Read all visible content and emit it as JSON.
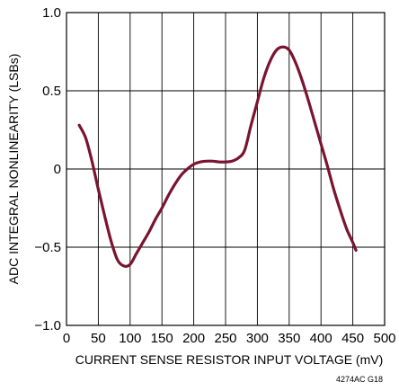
{
  "chart_data": {
    "type": "line",
    "xlabel": "CURRENT SENSE RESISTOR INPUT VOLTAGE (mV)",
    "ylabel": "ADC INTEGRAL NONLINEARITY (LSBs)",
    "xlim": [
      0,
      500
    ],
    "ylim": [
      -1.0,
      1.0
    ],
    "x_ticks": [
      0,
      50,
      100,
      150,
      200,
      250,
      300,
      350,
      400,
      450,
      500
    ],
    "x_tick_labels": [
      "0",
      "50",
      "100",
      "150",
      "200",
      "250",
      "300",
      "350",
      "400",
      "450",
      "500"
    ],
    "y_ticks": [
      -1.0,
      -0.5,
      0,
      0.5,
      1.0
    ],
    "y_tick_labels": [
      "−1.0",
      "−0.5",
      "0",
      "0.5",
      "1.0"
    ],
    "grid": true,
    "series": [
      {
        "color": "#7a1430",
        "points": [
          [
            20,
            0.28
          ],
          [
            30,
            0.2
          ],
          [
            40,
            0.05
          ],
          [
            50,
            -0.13
          ],
          [
            60,
            -0.3
          ],
          [
            70,
            -0.46
          ],
          [
            80,
            -0.58
          ],
          [
            90,
            -0.62
          ],
          [
            100,
            -0.61
          ],
          [
            110,
            -0.54
          ],
          [
            120,
            -0.47
          ],
          [
            130,
            -0.4
          ],
          [
            140,
            -0.32
          ],
          [
            150,
            -0.25
          ],
          [
            160,
            -0.17
          ],
          [
            170,
            -0.1
          ],
          [
            180,
            -0.04
          ],
          [
            190,
            0.0
          ],
          [
            200,
            0.03
          ],
          [
            210,
            0.045
          ],
          [
            220,
            0.05
          ],
          [
            230,
            0.05
          ],
          [
            240,
            0.045
          ],
          [
            250,
            0.045
          ],
          [
            260,
            0.05
          ],
          [
            270,
            0.07
          ],
          [
            280,
            0.12
          ],
          [
            290,
            0.28
          ],
          [
            300,
            0.43
          ],
          [
            310,
            0.58
          ],
          [
            320,
            0.69
          ],
          [
            330,
            0.76
          ],
          [
            340,
            0.78
          ],
          [
            350,
            0.76
          ],
          [
            360,
            0.68
          ],
          [
            370,
            0.57
          ],
          [
            380,
            0.44
          ],
          [
            390,
            0.3
          ],
          [
            400,
            0.16
          ],
          [
            410,
            0.02
          ],
          [
            420,
            -0.13
          ],
          [
            430,
            -0.26
          ],
          [
            440,
            -0.38
          ],
          [
            450,
            -0.47
          ],
          [
            455,
            -0.52
          ]
        ]
      }
    ],
    "figure_code": "4274AC G18"
  }
}
